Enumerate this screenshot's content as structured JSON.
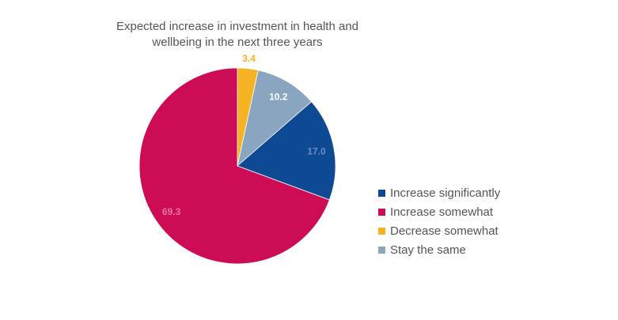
{
  "chart_data": {
    "type": "pie",
    "title": "Expected increase in investment in health and wellbeing in the next three years",
    "title_lines": [
      "Expected increase in investment in health and",
      "wellbeing in the next three years"
    ],
    "categories": [
      "Decrease somewhat",
      "Stay the same",
      "Increase significantly",
      "Increase somewhat"
    ],
    "values": [
      3.4,
      10.2,
      17.0,
      69.3
    ],
    "value_labels": [
      "3.4",
      "10.2",
      "17.0",
      "69.3"
    ],
    "colors": [
      "#f5b324",
      "#8aa5c0",
      "#0e4a94",
      "#cc0c55"
    ],
    "label_colors": [
      "#f5b324",
      "#ffffff",
      "#6f87c9",
      "#e8779e"
    ],
    "start": "12 o'clock, clockwise",
    "legend": {
      "placement": "right",
      "entries": [
        {
          "label": "Increase significantly",
          "color": "#0e4a94"
        },
        {
          "label": "Increase somewhat",
          "color": "#cc0c55"
        },
        {
          "label": "Decrease somewhat",
          "color": "#f5b324"
        },
        {
          "label": "Stay the same",
          "color": "#8aa5c0"
        }
      ]
    }
  }
}
